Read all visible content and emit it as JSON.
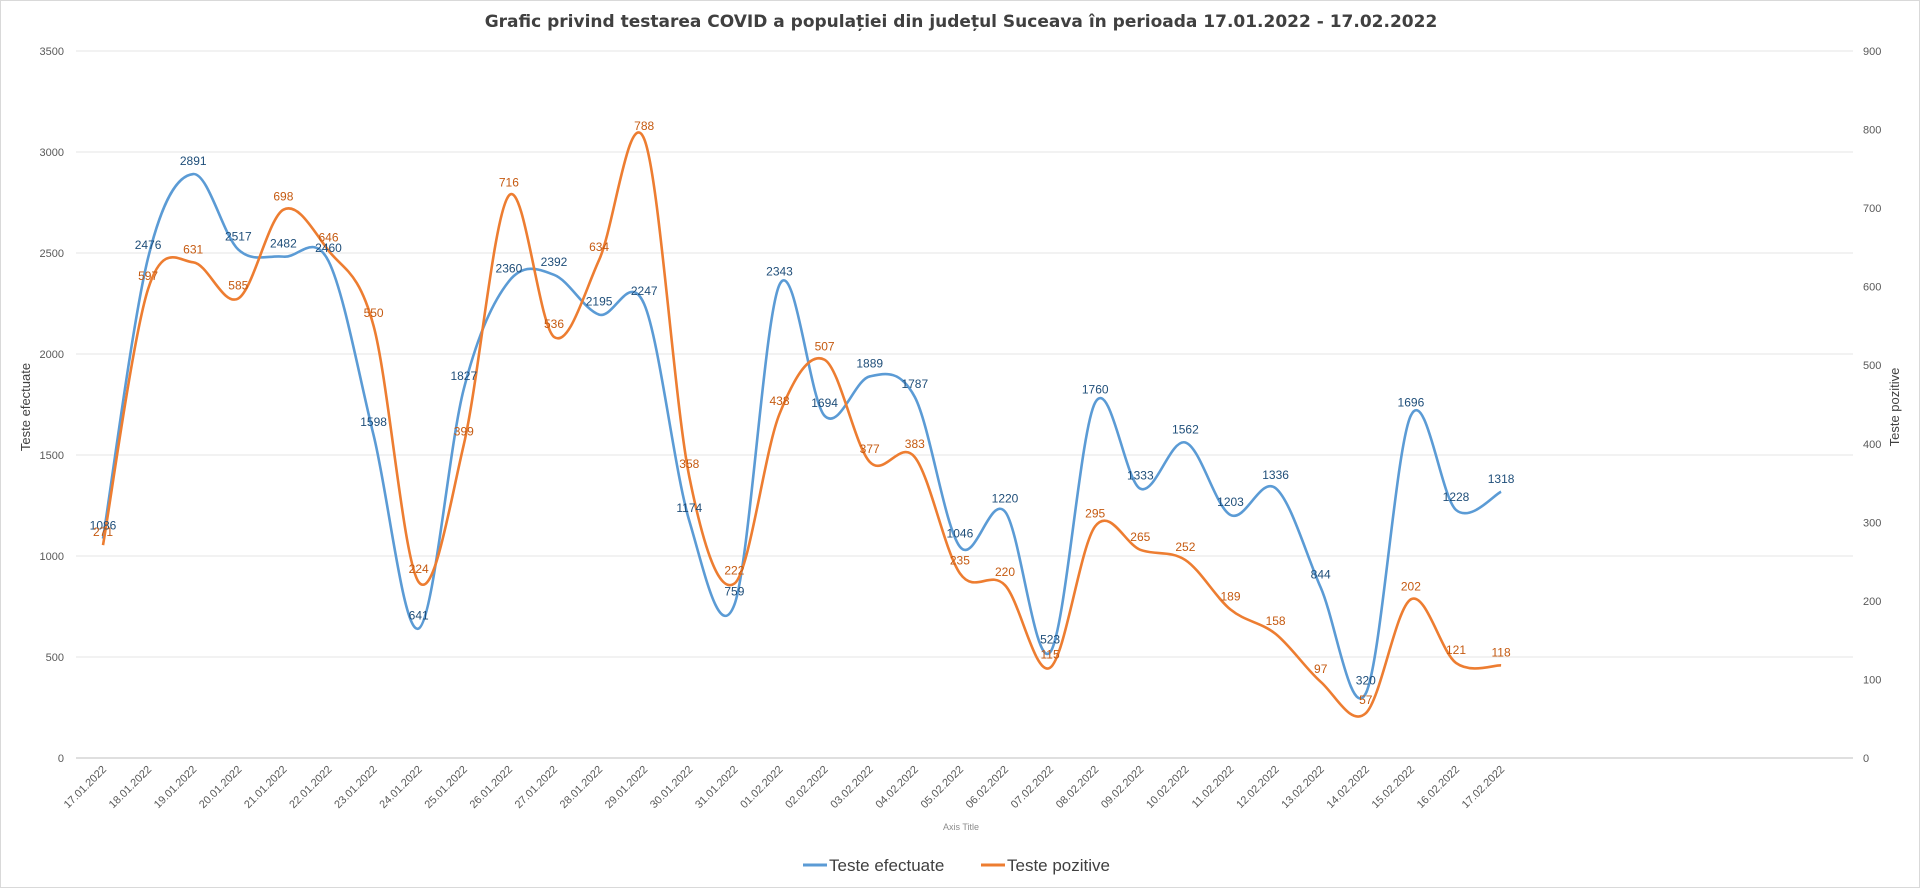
{
  "chart_data": {
    "type": "line",
    "title": "Grafic privind testarea COVID a populației din județul Suceava în perioada 17.01.2022  - 17.02.2022",
    "xlabel": "Axis Title",
    "ylabel": "Teste efectuate",
    "y2label": "Teste pozitive",
    "ylim": [
      0,
      3500
    ],
    "y2lim": [
      0,
      900
    ],
    "yticks": [
      "0",
      "500",
      "1000",
      "1500",
      "2000",
      "2500",
      "3000",
      "3500"
    ],
    "y2ticks": [
      "0",
      "100",
      "200",
      "300",
      "400",
      "500",
      "600",
      "700",
      "800",
      "900"
    ],
    "grid": true,
    "legend_position": "bottom",
    "smooth": true,
    "categories": [
      "17.01.2022",
      "18.01.2022",
      "19.01.2022",
      "20.01.2022",
      "21.01.2022",
      "22.01.2022",
      "23.01.2022",
      "24.01.2022",
      "25.01.2022",
      "26.01.2022",
      "27.01.2022",
      "28.01.2022",
      "29.01.2022",
      "30.01.2022",
      "31.01.2022",
      "01.02.2022",
      "02.02.2022",
      "03.02.2022",
      "04.02.2022",
      "05.02.2022",
      "06.02.2022",
      "07.02.2022",
      "08.02.2022",
      "09.02.2022",
      "10.02.2022",
      "11.02.2022",
      "12.02.2022",
      "13.02.2022",
      "14.02.2022",
      "15.02.2022",
      "16.02.2022",
      "17.02.2022"
    ],
    "series": [
      {
        "name": "Teste efectuate",
        "axis": "left",
        "color": "#5b9bd5",
        "label_color": "#1f4e79",
        "values": [
          1086,
          2476,
          2891,
          2517,
          2482,
          2460,
          1598,
          641,
          1827,
          2360,
          2392,
          2195,
          2247,
          1174,
          759,
          2343,
          1694,
          1889,
          1787,
          1046,
          1220,
          523,
          1760,
          1333,
          1562,
          1203,
          1336,
          844,
          320,
          1696,
          1228,
          1318
        ]
      },
      {
        "name": "Teste pozitive",
        "axis": "right",
        "color": "#ed7d31",
        "label_color": "#c55a11",
        "values": [
          271,
          597,
          631,
          585,
          698,
          646,
          550,
          224,
          399,
          716,
          536,
          634,
          788,
          358,
          222,
          438,
          507,
          377,
          383,
          235,
          220,
          115,
          295,
          265,
          252,
          189,
          158,
          97,
          57,
          202,
          121,
          118
        ]
      }
    ]
  }
}
